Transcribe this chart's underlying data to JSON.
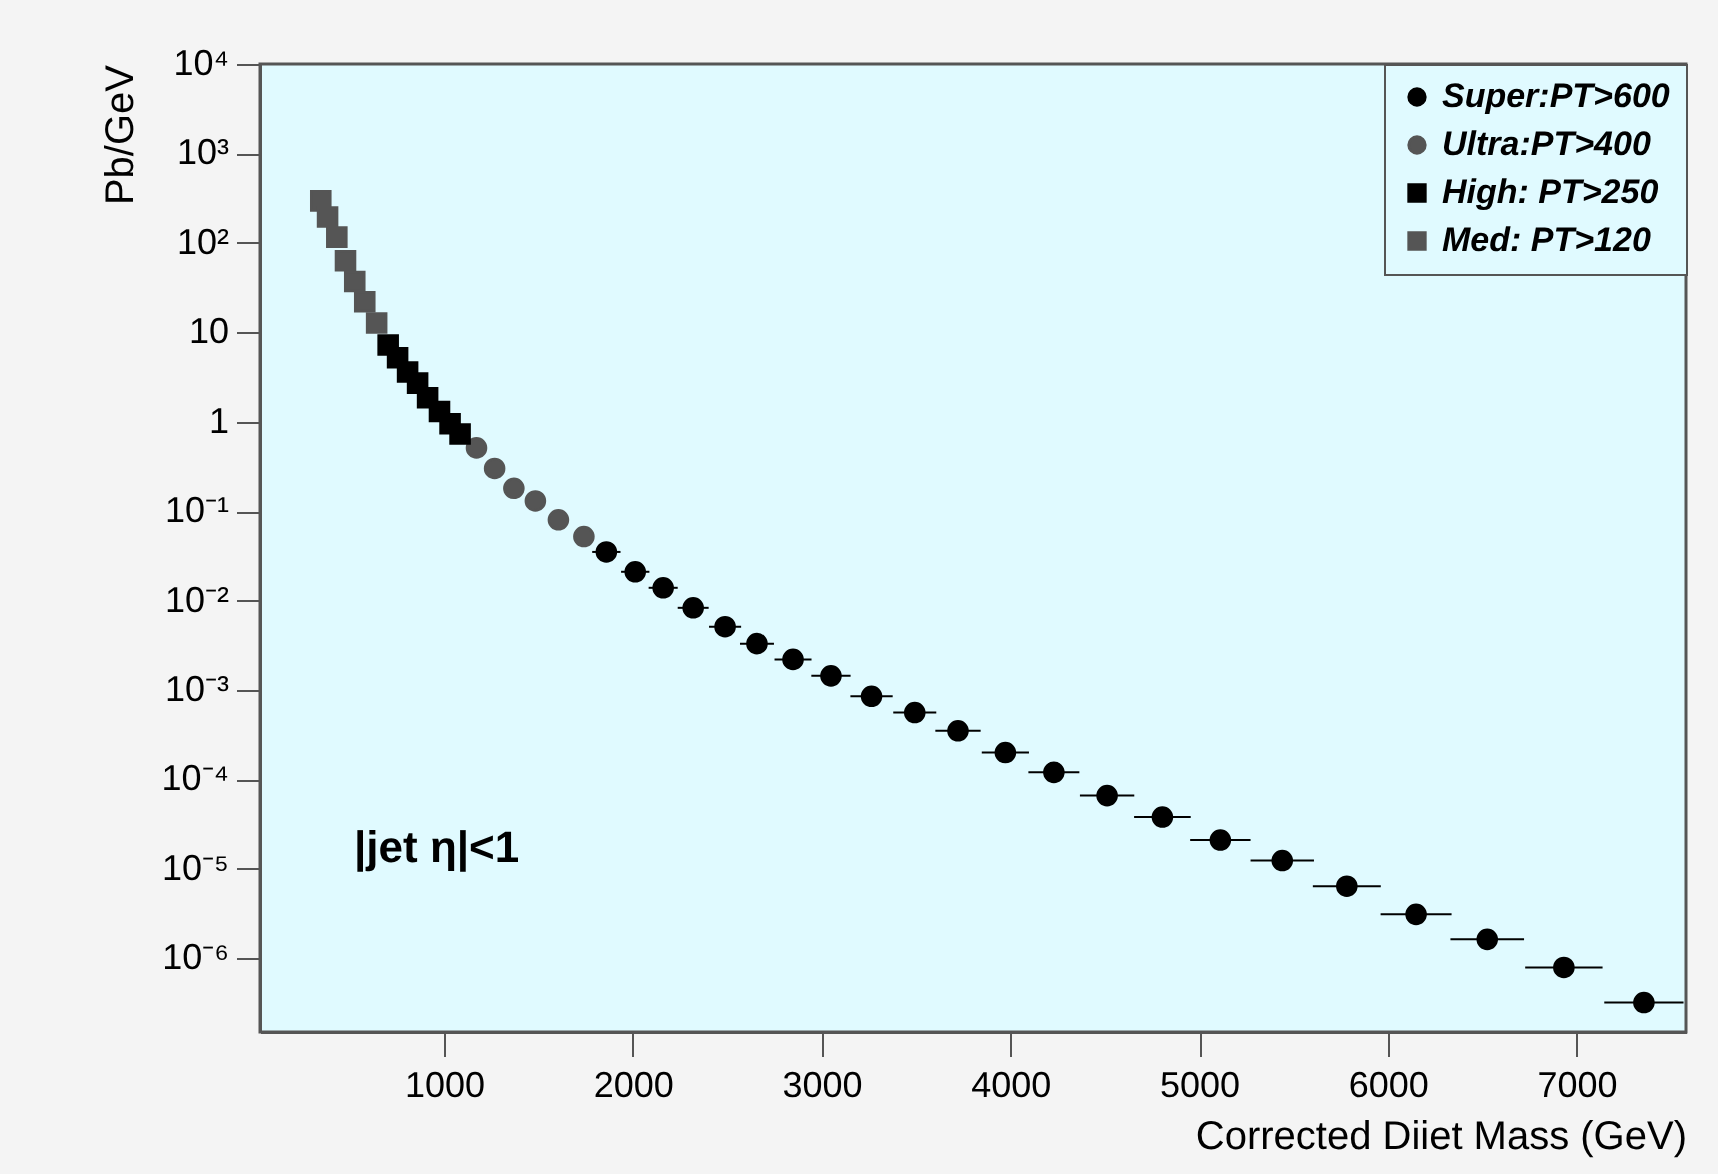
{
  "chart_data": {
    "type": "scatter",
    "xlabel": "Corrected Diiet Mass (GeV)",
    "ylabel": "Pb/GeV",
    "log": "y",
    "grid": false,
    "legend": "top right",
    "xlim": [
      25,
      7580
    ],
    "ylim": [
      1.5e-07,
      10000
    ],
    "xticks": [
      1000,
      2000,
      3000,
      4000,
      5000,
      6000,
      7000
    ],
    "yticks": [
      {
        "value": 10000,
        "label": "10⁴"
      },
      {
        "value": 1000,
        "label": "10³"
      },
      {
        "value": 100,
        "label": "10²"
      },
      {
        "value": 10,
        "label": "10"
      },
      {
        "value": 1,
        "label": "1"
      },
      {
        "value": 0.1,
        "label": "10⁻¹"
      },
      {
        "value": 0.01,
        "label": "10⁻²"
      },
      {
        "value": 0.001,
        "label": "10⁻³"
      },
      {
        "value": 0.0001,
        "label": "10⁻⁴"
      },
      {
        "value": 1e-05,
        "label": "10⁻⁵"
      },
      {
        "value": 1e-06,
        "label": "10⁻⁶"
      }
    ],
    "annotations": [
      "|jet η|<1"
    ],
    "series": [
      {
        "name": "Super:PT>600",
        "color": "#000000",
        "marker": "circle",
        "x": [
          1860,
          2013,
          2161,
          2320,
          2489,
          2658,
          2849,
          3050,
          3265,
          3494,
          3723,
          3974,
          4231,
          4513,
          4806,
          5113,
          5441,
          5783,
          6150,
          6527,
          6933,
          7357
        ],
        "values": [
          0.035,
          0.021,
          0.0139,
          0.0083,
          0.0051,
          0.0033,
          0.0022,
          0.00144,
          0.00085,
          0.00056,
          0.00035,
          0.0002,
          0.00012,
          6.6e-05,
          3.8e-05,
          2.1e-05,
          1.24e-05,
          6.4e-06,
          3.1e-06,
          1.63e-06,
          7.9e-07,
          3.2e-07
        ],
        "xerrors": [
          75,
          75,
          77,
          82,
          85,
          90,
          98,
          104,
          112,
          114,
          120,
          125,
          135,
          144,
          150,
          160,
          168,
          180,
          188,
          195,
          205,
          210
        ]
      },
      {
        "name": "Ultra:PT>400",
        "color": "#555555",
        "marker": "circle",
        "x": [
          1172,
          1268,
          1370,
          1484,
          1606,
          1741
        ],
        "values": [
          0.51,
          0.3,
          0.18,
          0.13,
          0.08,
          0.052
        ]
      },
      {
        "name": "High: PT>250",
        "color": "#000000",
        "marker": "square",
        "x": [
          704,
          754,
          807,
          860,
          913,
          976,
          1032,
          1085
        ],
        "values": [
          7.2,
          5.2,
          3.6,
          2.7,
          1.85,
          1.3,
          0.95,
          0.73
        ]
      },
      {
        "name": "Med:  PT>120",
        "color": "#555555",
        "marker": "square",
        "x": [
          347,
          383,
          432,
          478,
          527,
          580,
          643
        ],
        "values": [
          295,
          195,
          116,
          63,
          37,
          22,
          12.7
        ]
      }
    ]
  }
}
